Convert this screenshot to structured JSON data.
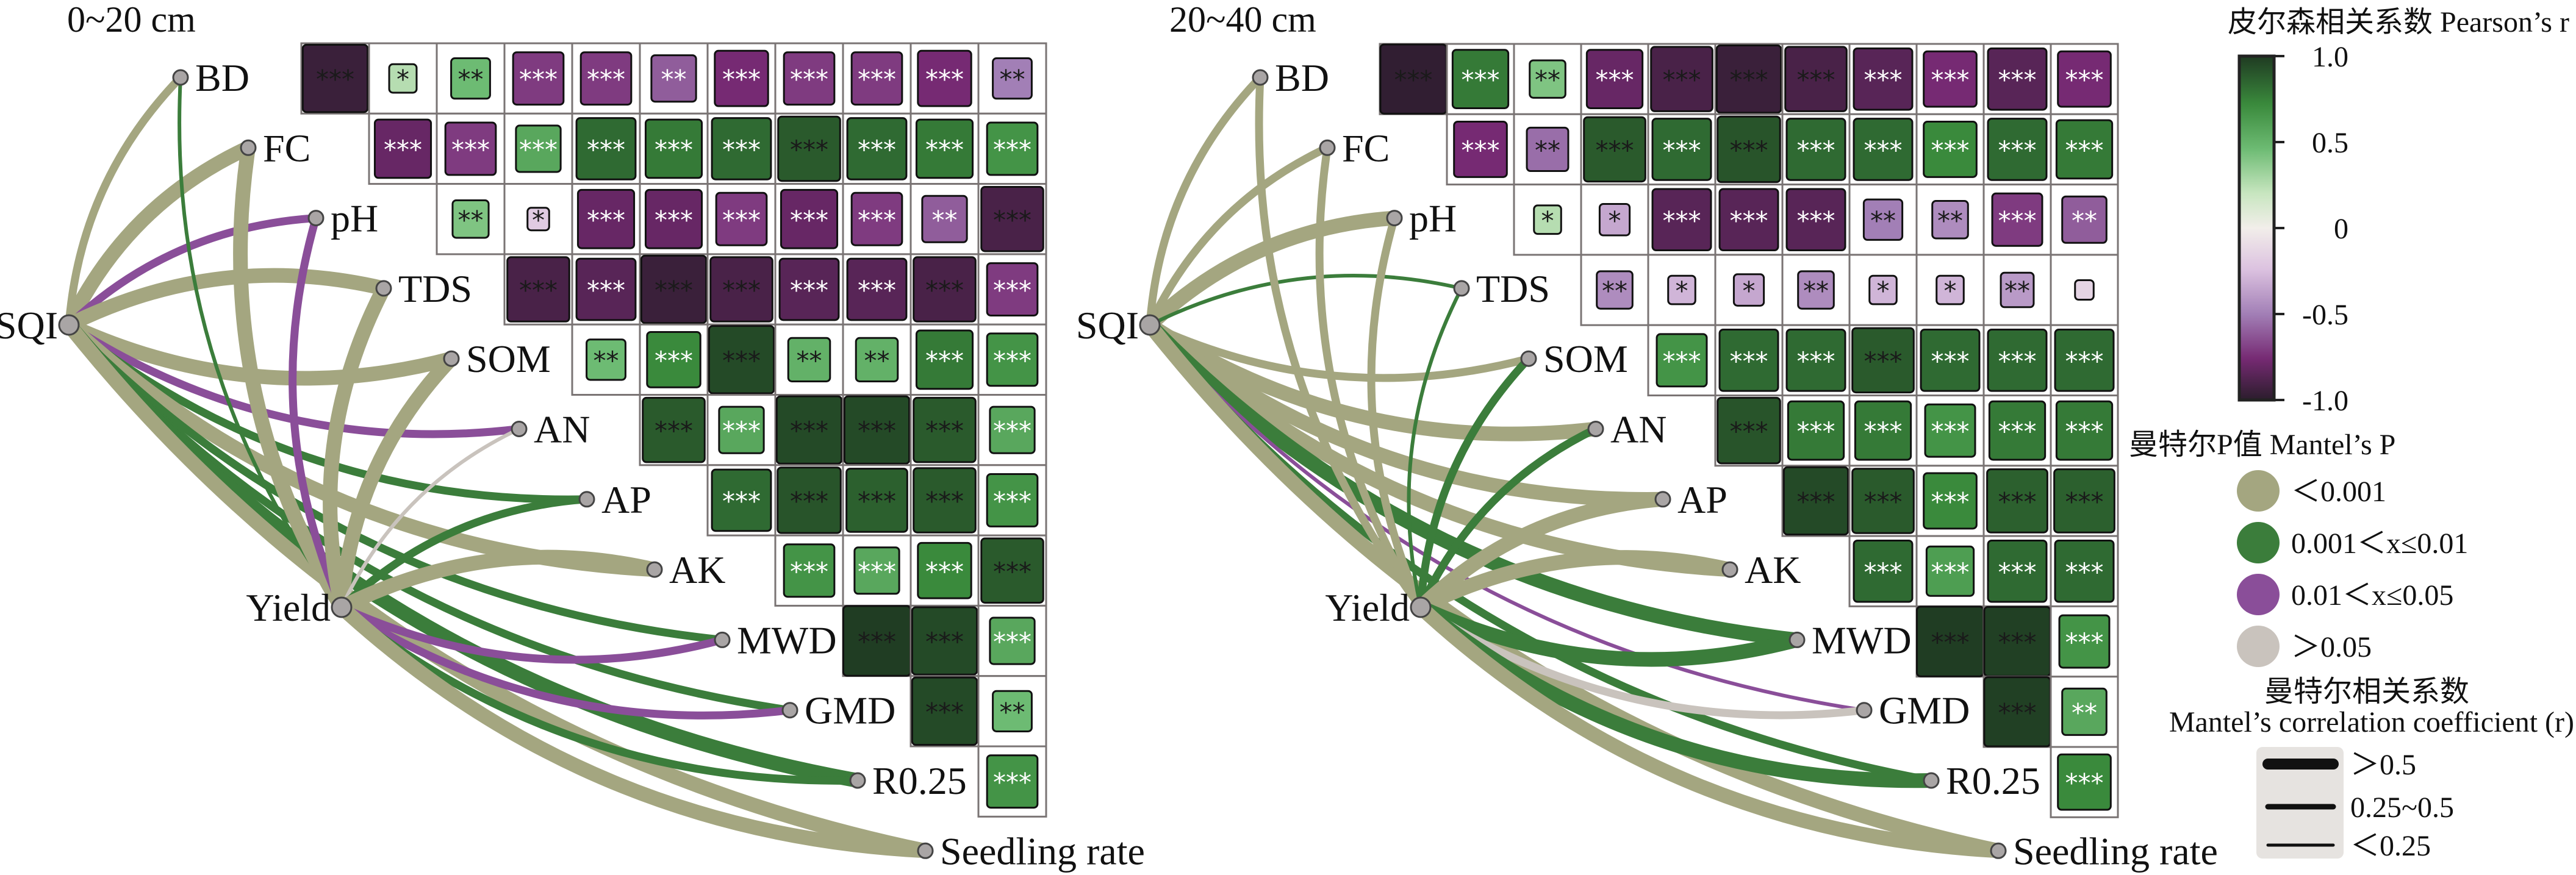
{
  "chart_data": {
    "type": "heatmap",
    "variables": [
      "BD",
      "FC",
      "pH",
      "TDS",
      "SOM",
      "AN",
      "AP",
      "AK",
      "MWD",
      "GMD",
      "R0.25",
      "Seedling rate"
    ],
    "hubs": [
      "SQI",
      "Yield"
    ],
    "panels": [
      {
        "title": "0~20 cm",
        "pearson_r": [
          [
            -0.95,
            0.3,
            0.5,
            -0.7,
            -0.7,
            -0.6,
            -0.75,
            -0.7,
            -0.7,
            -0.75,
            -0.5
          ],
          [
            -0.8,
            -0.7,
            0.6,
            0.85,
            0.8,
            0.85,
            0.9,
            0.85,
            0.8,
            0.7
          ],
          [
            0.45,
            -0.2,
            -0.8,
            -0.8,
            -0.7,
            -0.8,
            -0.7,
            -0.6,
            -0.9
          ],
          [
            -0.9,
            -0.85,
            -0.95,
            -0.9,
            -0.85,
            -0.85,
            -0.9,
            -0.7
          ],
          [
            0.5,
            0.75,
            0.95,
            0.55,
            0.55,
            0.8,
            0.7
          ],
          [
            0.9,
            0.6,
            0.95,
            0.95,
            0.9,
            0.6
          ],
          [
            0.85,
            0.92,
            0.88,
            0.9,
            0.7
          ],
          [
            0.7,
            0.6,
            0.75,
            0.9
          ],
          [
            0.99,
            0.95,
            0.6
          ],
          [
            0.95,
            0.5
          ],
          [
            0.7
          ]
        ],
        "significance": [
          [
            "***",
            "*",
            "**",
            "***",
            "***",
            "**",
            "***",
            "***",
            "***",
            "***",
            "**"
          ],
          [
            "***",
            "***",
            "***",
            "***",
            "***",
            "***",
            "***",
            "***",
            "***",
            "***"
          ],
          [
            "**",
            "*",
            "***",
            "***",
            "***",
            "***",
            "***",
            "**",
            "***"
          ],
          [
            "***",
            "***",
            "***",
            "***",
            "***",
            "***",
            "***",
            "***"
          ],
          [
            "**",
            "***",
            "***",
            "**",
            "**",
            "***",
            "***"
          ],
          [
            "***",
            "***",
            "***",
            "***",
            "***",
            "***"
          ],
          [
            "***",
            "***",
            "***",
            "***",
            "***"
          ],
          [
            "***",
            "***",
            "***",
            "***"
          ],
          [
            "***",
            "***",
            "***"
          ],
          [
            "***",
            "**"
          ],
          [
            "***"
          ]
        ],
        "mantel": {
          "SQI": [
            [
              0,
              1
            ],
            [
              0,
              0
            ],
            [
              2,
              1
            ],
            [
              0,
              0
            ],
            [
              0,
              0
            ],
            [
              2,
              1
            ],
            [
              1,
              1
            ],
            [
              0,
              0
            ],
            [
              1,
              1
            ],
            [
              1,
              1
            ],
            [
              1,
              0
            ],
            [
              0,
              0
            ]
          ],
          "Yield": [
            [
              1,
              2
            ],
            [
              0,
              0
            ],
            [
              2,
              1
            ],
            [
              0,
              0
            ],
            [
              0,
              0
            ],
            [
              3,
              2
            ],
            [
              1,
              1
            ],
            [
              0,
              0
            ],
            [
              2,
              1
            ],
            [
              2,
              1
            ],
            [
              1,
              1
            ],
            [
              0,
              0
            ]
          ]
        }
      },
      {
        "title": "20~40 cm",
        "pearson_r": [
          [
            -0.98,
            0.8,
            0.45,
            -0.8,
            -0.9,
            -0.95,
            -0.9,
            -0.85,
            -0.75,
            -0.85,
            -0.75
          ],
          [
            -0.75,
            -0.55,
            0.9,
            0.85,
            0.92,
            0.85,
            0.85,
            0.75,
            0.85,
            0.8
          ],
          [
            0.3,
            -0.35,
            -0.85,
            -0.85,
            -0.85,
            -0.5,
            -0.45,
            -0.7,
            -0.6
          ],
          [
            -0.45,
            -0.3,
            -0.35,
            -0.45,
            -0.3,
            -0.3,
            -0.4,
            -0.15
          ],
          [
            0.7,
            0.85,
            0.85,
            0.9,
            0.85,
            0.85,
            0.85
          ],
          [
            0.92,
            0.8,
            0.8,
            0.7,
            0.8,
            0.8
          ],
          [
            0.95,
            0.9,
            0.75,
            0.88,
            0.88
          ],
          [
            0.85,
            0.65,
            0.85,
            0.85
          ],
          [
            0.99,
            0.98,
            0.7
          ],
          [
            0.98,
            0.6
          ],
          [
            0.75
          ]
        ],
        "significance": [
          [
            "***",
            "***",
            "**",
            "***",
            "***",
            "***",
            "***",
            "***",
            "***",
            "***",
            "***"
          ],
          [
            "***",
            "**",
            "***",
            "***",
            "***",
            "***",
            "***",
            "***",
            "***",
            "***"
          ],
          [
            "*",
            "*",
            "***",
            "***",
            "***",
            "**",
            "**",
            "***",
            "**"
          ],
          [
            "**",
            "*",
            "*",
            "**",
            "*",
            "*",
            "**",
            ""
          ],
          [
            "***",
            "***",
            "***",
            "***",
            "***",
            "***",
            "***"
          ],
          [
            "***",
            "***",
            "***",
            "***",
            "***",
            "***"
          ],
          [
            "***",
            "***",
            "***",
            "***",
            "***"
          ],
          [
            "***",
            "***",
            "***",
            "***"
          ],
          [
            "***",
            "***",
            "***"
          ],
          [
            "***",
            "**"
          ],
          [
            "***"
          ]
        ],
        "mantel": {
          "SQI": [
            [
              0,
              1
            ],
            [
              0,
              1
            ],
            [
              0,
              0
            ],
            [
              1,
              2
            ],
            [
              0,
              1
            ],
            [
              0,
              0
            ],
            [
              0,
              0
            ],
            [
              0,
              0
            ],
            [
              1,
              0
            ],
            [
              2,
              2
            ],
            [
              1,
              1
            ],
            [
              0,
              0
            ]
          ],
          "Yield": [
            [
              0,
              1
            ],
            [
              0,
              1
            ],
            [
              0,
              1
            ],
            [
              1,
              2
            ],
            [
              1,
              1
            ],
            [
              1,
              1
            ],
            [
              0,
              0
            ],
            [
              0,
              0
            ],
            [
              1,
              0
            ],
            [
              3,
              1
            ],
            [
              1,
              0
            ],
            [
              0,
              0
            ]
          ]
        }
      }
    ],
    "colorbar": {
      "title": "皮尔森相关系数 Pearson’s r",
      "range": [
        -1,
        1
      ],
      "ticks": [
        "1.0",
        "0.5",
        "0",
        "-0.5",
        "-1.0"
      ]
    },
    "mantel_p_legend": {
      "title": "曼特尔P值 Mantel’s P",
      "labels": [
        "＜0.001",
        "0.001＜x≤0.01",
        "0.01＜x≤0.05",
        "＞0.05"
      ],
      "colors": [
        "#a4a680",
        "#3b7d3b",
        "#8a4e99",
        "#c9c3bd"
      ]
    },
    "mantel_r_legend": {
      "title_cn": "曼特尔相关系数",
      "title_en": "Mantel’s correlation coefficient (r)",
      "labels": [
        "＞0.5",
        "0.25~0.5",
        "＜0.25"
      ]
    }
  }
}
